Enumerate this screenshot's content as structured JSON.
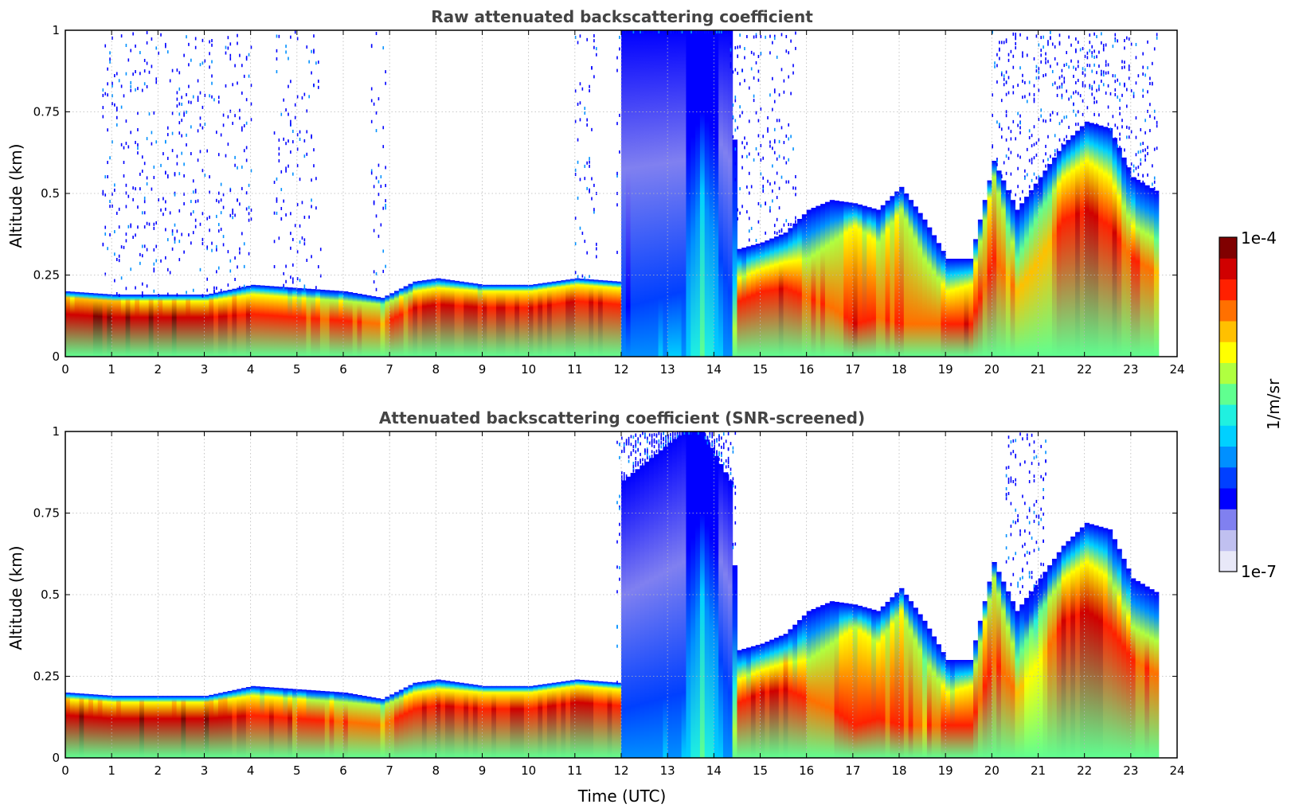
{
  "chart_data": [
    {
      "type": "heatmap",
      "title": "Raw attenuated backscattering coefficient",
      "xlabel": "",
      "ylabel": "Altitude (km)",
      "xlim": [
        0,
        24
      ],
      "ylim": [
        0,
        1
      ],
      "x_ticks": [
        "0",
        "1",
        "2",
        "3",
        "4",
        "5",
        "6",
        "7",
        "8",
        "9",
        "10",
        "11",
        "12",
        "13",
        "14",
        "15",
        "16",
        "17",
        "18",
        "19",
        "20",
        "21",
        "22",
        "23",
        "24"
      ],
      "y_ticks": [
        "0",
        "0.25",
        "0.5",
        "0.75",
        "1"
      ],
      "grid": true,
      "snr_screened": false,
      "sparse_noise_windows": [
        [
          0.8,
          4.0
        ],
        [
          4.5,
          5.5
        ],
        [
          6.6,
          6.9
        ],
        [
          11.0,
          11.5
        ],
        [
          11.9,
          14.5
        ],
        [
          14.5,
          15.8
        ],
        [
          20.0,
          21.3
        ],
        [
          21.3,
          23.6
        ]
      ],
      "profile": [
        {
          "t": 0.0,
          "top": 0.2,
          "peak": 0.18,
          "dense": 0.13,
          "level": 0.95
        },
        {
          "t": 1.0,
          "top": 0.19,
          "peak": 0.17,
          "dense": 0.12,
          "level": 0.95
        },
        {
          "t": 2.0,
          "top": 0.19,
          "peak": 0.17,
          "dense": 0.12,
          "level": 0.95
        },
        {
          "t": 3.0,
          "top": 0.19,
          "peak": 0.17,
          "dense": 0.12,
          "level": 0.95
        },
        {
          "t": 4.0,
          "top": 0.22,
          "peak": 0.19,
          "dense": 0.13,
          "level": 0.9
        },
        {
          "t": 5.0,
          "top": 0.21,
          "peak": 0.18,
          "dense": 0.12,
          "level": 0.88
        },
        {
          "t": 6.0,
          "top": 0.2,
          "peak": 0.17,
          "dense": 0.11,
          "level": 0.85
        },
        {
          "t": 6.8,
          "top": 0.18,
          "peak": 0.16,
          "dense": 0.1,
          "level": 0.8
        },
        {
          "t": 7.5,
          "top": 0.23,
          "peak": 0.2,
          "dense": 0.15,
          "level": 0.9
        },
        {
          "t": 8.0,
          "top": 0.24,
          "peak": 0.21,
          "dense": 0.16,
          "level": 0.92
        },
        {
          "t": 9.0,
          "top": 0.22,
          "peak": 0.2,
          "dense": 0.15,
          "level": 0.9
        },
        {
          "t": 10.0,
          "top": 0.22,
          "peak": 0.2,
          "dense": 0.15,
          "level": 0.9
        },
        {
          "t": 11.0,
          "top": 0.24,
          "peak": 0.22,
          "dense": 0.17,
          "level": 0.92
        },
        {
          "t": 11.9,
          "top": 0.23,
          "peak": 0.21,
          "dense": 0.16,
          "level": 0.9
        },
        {
          "t": 12.0,
          "top": 1.0,
          "peak": 0.15,
          "dense": 0.0,
          "level": 0.35
        },
        {
          "t": 13.3,
          "top": 1.0,
          "peak": 0.2,
          "dense": 0.0,
          "level": 0.4
        },
        {
          "t": 13.7,
          "top": 1.0,
          "peak": 0.5,
          "dense": 0.0,
          "level": 0.55
        },
        {
          "t": 14.3,
          "top": 1.0,
          "peak": 0.2,
          "dense": 0.0,
          "level": 0.35
        },
        {
          "t": 14.5,
          "top": 0.33,
          "peak": 0.24,
          "dense": 0.17,
          "level": 0.88
        },
        {
          "t": 15.0,
          "top": 0.35,
          "peak": 0.27,
          "dense": 0.2,
          "level": 0.9
        },
        {
          "t": 15.5,
          "top": 0.38,
          "peak": 0.29,
          "dense": 0.21,
          "level": 0.92
        },
        {
          "t": 16.0,
          "top": 0.45,
          "peak": 0.3,
          "dense": 0.18,
          "level": 0.85
        },
        {
          "t": 16.5,
          "top": 0.48,
          "peak": 0.35,
          "dense": 0.15,
          "level": 0.85
        },
        {
          "t": 17.0,
          "top": 0.47,
          "peak": 0.4,
          "dense": 0.1,
          "level": 0.9
        },
        {
          "t": 17.5,
          "top": 0.45,
          "peak": 0.35,
          "dense": 0.12,
          "level": 0.85
        },
        {
          "t": 18.0,
          "top": 0.52,
          "peak": 0.45,
          "dense": 0.1,
          "level": 0.85
        },
        {
          "t": 18.5,
          "top": 0.42,
          "peak": 0.3,
          "dense": 0.1,
          "level": 0.8
        },
        {
          "t": 19.0,
          "top": 0.3,
          "peak": 0.2,
          "dense": 0.1,
          "level": 0.88
        },
        {
          "t": 19.5,
          "top": 0.3,
          "peak": 0.22,
          "dense": 0.1,
          "level": 0.88
        },
        {
          "t": 20.0,
          "top": 0.6,
          "peak": 0.55,
          "dense": 0.3,
          "level": 0.85
        },
        {
          "t": 20.5,
          "top": 0.45,
          "peak": 0.3,
          "dense": 0.2,
          "level": 0.75
        },
        {
          "t": 21.0,
          "top": 0.55,
          "peak": 0.45,
          "dense": 0.3,
          "level": 0.7
        },
        {
          "t": 21.5,
          "top": 0.65,
          "peak": 0.55,
          "dense": 0.42,
          "level": 0.9
        },
        {
          "t": 22.0,
          "top": 0.72,
          "peak": 0.6,
          "dense": 0.45,
          "level": 0.92
        },
        {
          "t": 22.5,
          "top": 0.7,
          "peak": 0.55,
          "dense": 0.4,
          "level": 0.9
        },
        {
          "t": 23.0,
          "top": 0.55,
          "peak": 0.4,
          "dense": 0.3,
          "level": 0.85
        },
        {
          "t": 23.6,
          "top": 0.5,
          "peak": 0.35,
          "dense": 0.25,
          "level": 0.8
        }
      ]
    },
    {
      "type": "heatmap",
      "title": "Attenuated backscattering coefficient (SNR-screened)",
      "xlabel": "Time (UTC)",
      "ylabel": "Altitude (km)",
      "xlim": [
        0,
        24
      ],
      "ylim": [
        0,
        1
      ],
      "x_ticks": [
        "0",
        "1",
        "2",
        "3",
        "4",
        "5",
        "6",
        "7",
        "8",
        "9",
        "10",
        "11",
        "12",
        "13",
        "14",
        "15",
        "16",
        "17",
        "18",
        "19",
        "20",
        "21",
        "22",
        "23",
        "24"
      ],
      "y_ticks": [
        "0",
        "0.25",
        "0.5",
        "0.75",
        "1"
      ],
      "grid": true,
      "snr_screened": true,
      "sparse_noise_windows": [
        [
          11.9,
          14.5
        ],
        [
          20.3,
          21.2
        ]
      ],
      "profile": [
        {
          "t": 0.0,
          "top": 0.2,
          "peak": 0.18,
          "dense": 0.13,
          "level": 0.95
        },
        {
          "t": 1.0,
          "top": 0.19,
          "peak": 0.17,
          "dense": 0.12,
          "level": 0.95
        },
        {
          "t": 2.0,
          "top": 0.19,
          "peak": 0.17,
          "dense": 0.12,
          "level": 0.95
        },
        {
          "t": 3.0,
          "top": 0.19,
          "peak": 0.17,
          "dense": 0.12,
          "level": 0.95
        },
        {
          "t": 4.0,
          "top": 0.22,
          "peak": 0.19,
          "dense": 0.13,
          "level": 0.9
        },
        {
          "t": 5.0,
          "top": 0.21,
          "peak": 0.18,
          "dense": 0.12,
          "level": 0.88
        },
        {
          "t": 6.0,
          "top": 0.2,
          "peak": 0.17,
          "dense": 0.11,
          "level": 0.85
        },
        {
          "t": 6.8,
          "top": 0.18,
          "peak": 0.16,
          "dense": 0.1,
          "level": 0.8
        },
        {
          "t": 7.5,
          "top": 0.23,
          "peak": 0.2,
          "dense": 0.15,
          "level": 0.9
        },
        {
          "t": 8.0,
          "top": 0.24,
          "peak": 0.21,
          "dense": 0.16,
          "level": 0.92
        },
        {
          "t": 9.0,
          "top": 0.22,
          "peak": 0.2,
          "dense": 0.15,
          "level": 0.9
        },
        {
          "t": 10.0,
          "top": 0.22,
          "peak": 0.2,
          "dense": 0.15,
          "level": 0.9
        },
        {
          "t": 11.0,
          "top": 0.24,
          "peak": 0.22,
          "dense": 0.17,
          "level": 0.92
        },
        {
          "t": 11.9,
          "top": 0.23,
          "peak": 0.21,
          "dense": 0.16,
          "level": 0.9
        },
        {
          "t": 12.0,
          "top": 0.85,
          "peak": 0.15,
          "dense": 0.0,
          "level": 0.35
        },
        {
          "t": 13.3,
          "top": 1.0,
          "peak": 0.2,
          "dense": 0.0,
          "level": 0.4
        },
        {
          "t": 13.7,
          "top": 1.0,
          "peak": 0.5,
          "dense": 0.0,
          "level": 0.55
        },
        {
          "t": 14.3,
          "top": 0.85,
          "peak": 0.2,
          "dense": 0.0,
          "level": 0.35
        },
        {
          "t": 14.5,
          "top": 0.33,
          "peak": 0.24,
          "dense": 0.17,
          "level": 0.88
        },
        {
          "t": 15.0,
          "top": 0.35,
          "peak": 0.27,
          "dense": 0.2,
          "level": 0.9
        },
        {
          "t": 15.5,
          "top": 0.38,
          "peak": 0.29,
          "dense": 0.21,
          "level": 0.92
        },
        {
          "t": 16.0,
          "top": 0.45,
          "peak": 0.3,
          "dense": 0.18,
          "level": 0.85
        },
        {
          "t": 16.5,
          "top": 0.48,
          "peak": 0.35,
          "dense": 0.15,
          "level": 0.85
        },
        {
          "t": 17.0,
          "top": 0.47,
          "peak": 0.4,
          "dense": 0.1,
          "level": 0.9
        },
        {
          "t": 17.5,
          "top": 0.45,
          "peak": 0.35,
          "dense": 0.12,
          "level": 0.85
        },
        {
          "t": 18.0,
          "top": 0.52,
          "peak": 0.45,
          "dense": 0.1,
          "level": 0.85
        },
        {
          "t": 18.5,
          "top": 0.42,
          "peak": 0.3,
          "dense": 0.1,
          "level": 0.8
        },
        {
          "t": 19.0,
          "top": 0.3,
          "peak": 0.2,
          "dense": 0.1,
          "level": 0.88
        },
        {
          "t": 19.5,
          "top": 0.3,
          "peak": 0.22,
          "dense": 0.1,
          "level": 0.88
        },
        {
          "t": 20.0,
          "top": 0.6,
          "peak": 0.55,
          "dense": 0.3,
          "level": 0.85
        },
        {
          "t": 20.5,
          "top": 0.45,
          "peak": 0.3,
          "dense": 0.2,
          "level": 0.75
        },
        {
          "t": 21.0,
          "top": 0.55,
          "peak": 0.45,
          "dense": 0.3,
          "level": 0.7
        },
        {
          "t": 21.5,
          "top": 0.65,
          "peak": 0.55,
          "dense": 0.42,
          "level": 0.9
        },
        {
          "t": 22.0,
          "top": 0.72,
          "peak": 0.6,
          "dense": 0.45,
          "level": 0.92
        },
        {
          "t": 22.5,
          "top": 0.7,
          "peak": 0.55,
          "dense": 0.4,
          "level": 0.9
        },
        {
          "t": 23.0,
          "top": 0.55,
          "peak": 0.4,
          "dense": 0.3,
          "level": 0.85
        },
        {
          "t": 23.6,
          "top": 0.5,
          "peak": 0.35,
          "dense": 0.25,
          "level": 0.8
        }
      ]
    }
  ],
  "colorbar": {
    "max_label": "1e-4",
    "min_label": "1e-7",
    "units": "1/m/sr",
    "colors": [
      "#e8e8f8",
      "#c0c0f0",
      "#8080f0",
      "#0000ff",
      "#0040ff",
      "#0090ff",
      "#00d0ff",
      "#20f0e0",
      "#60ff90",
      "#b0ff40",
      "#ffff00",
      "#ffc000",
      "#ff7000",
      "#ff2000",
      "#d00000",
      "#800000"
    ],
    "saturation_color": "#000000"
  }
}
